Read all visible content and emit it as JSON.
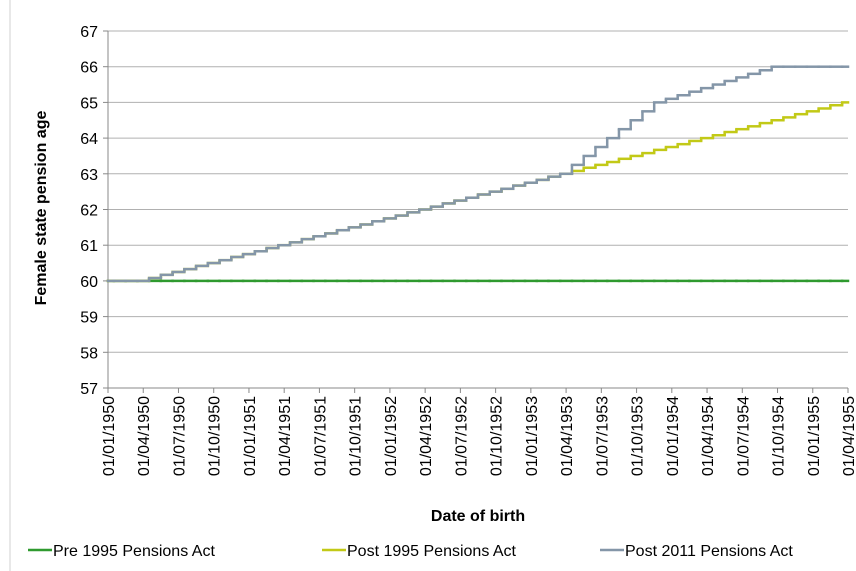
{
  "chart_data": {
    "type": "step-line",
    "xlabel": "Date of birth",
    "ylabel": "Female state pension age",
    "x": [
      "01/01/1950",
      "01/02/1950",
      "01/03/1950",
      "01/04/1950",
      "01/05/1950",
      "01/06/1950",
      "01/07/1950",
      "01/08/1950",
      "01/09/1950",
      "01/10/1950",
      "01/11/1950",
      "01/12/1950",
      "01/01/1951",
      "01/02/1951",
      "01/03/1951",
      "01/04/1951",
      "01/05/1951",
      "01/06/1951",
      "01/07/1951",
      "01/08/1951",
      "01/09/1951",
      "01/10/1951",
      "01/11/1951",
      "01/12/1951",
      "01/01/1952",
      "01/02/1952",
      "01/03/1952",
      "01/04/1952",
      "01/05/1952",
      "01/06/1952",
      "01/07/1952",
      "01/08/1952",
      "01/09/1952",
      "01/10/1952",
      "01/11/1952",
      "01/12/1952",
      "01/01/1953",
      "01/02/1953",
      "01/03/1953",
      "01/04/1953",
      "01/05/1953",
      "01/06/1953",
      "01/07/1953",
      "01/08/1953",
      "01/09/1953",
      "01/10/1953",
      "01/11/1953",
      "01/12/1953",
      "01/01/1954",
      "01/02/1954",
      "01/03/1954",
      "01/04/1954",
      "01/05/1954",
      "01/06/1954",
      "01/07/1954",
      "01/08/1954",
      "01/09/1954",
      "01/10/1954",
      "01/11/1954",
      "01/12/1954",
      "01/01/1955",
      "01/02/1955",
      "01/03/1955",
      "01/04/1955"
    ],
    "xtick_every": 3,
    "series": [
      {
        "name": "Pre 1995 Pensions Act",
        "color": "#2f9a2f",
        "values": [
          60,
          60,
          60,
          60,
          60,
          60,
          60,
          60,
          60,
          60,
          60,
          60,
          60,
          60,
          60,
          60,
          60,
          60,
          60,
          60,
          60,
          60,
          60,
          60,
          60,
          60,
          60,
          60,
          60,
          60,
          60,
          60,
          60,
          60,
          60,
          60,
          60,
          60,
          60,
          60,
          60,
          60,
          60,
          60,
          60,
          60,
          60,
          60,
          60,
          60,
          60,
          60,
          60,
          60,
          60,
          60,
          60,
          60,
          60,
          60,
          60,
          60,
          60,
          60
        ]
      },
      {
        "name": "Post 1995 Pensions Act",
        "color": "#c2c917",
        "values": [
          60,
          60,
          60,
          60,
          60.08,
          60.17,
          60.25,
          60.33,
          60.42,
          60.5,
          60.58,
          60.67,
          60.75,
          60.83,
          60.92,
          61,
          61.08,
          61.17,
          61.25,
          61.33,
          61.42,
          61.5,
          61.58,
          61.67,
          61.75,
          61.83,
          61.92,
          62,
          62.08,
          62.17,
          62.25,
          62.33,
          62.42,
          62.5,
          62.58,
          62.67,
          62.75,
          62.83,
          62.92,
          63,
          63.08,
          63.17,
          63.25,
          63.33,
          63.42,
          63.5,
          63.58,
          63.67,
          63.75,
          63.83,
          63.92,
          64,
          64.08,
          64.17,
          64.25,
          64.33,
          64.42,
          64.5,
          64.58,
          64.67,
          64.75,
          64.83,
          64.92,
          65
        ]
      },
      {
        "name": "Post 2011 Pensions Act",
        "color": "#8496a8",
        "values": [
          60,
          60,
          60,
          60,
          60.08,
          60.17,
          60.25,
          60.33,
          60.42,
          60.5,
          60.58,
          60.67,
          60.75,
          60.83,
          60.92,
          61,
          61.08,
          61.17,
          61.25,
          61.33,
          61.42,
          61.5,
          61.58,
          61.67,
          61.75,
          61.83,
          61.92,
          62,
          62.08,
          62.17,
          62.25,
          62.33,
          62.42,
          62.5,
          62.58,
          62.67,
          62.75,
          62.83,
          62.92,
          63,
          63.25,
          63.5,
          63.75,
          64,
          64.25,
          64.5,
          64.75,
          65,
          65.1,
          65.2,
          65.3,
          65.4,
          65.5,
          65.6,
          65.7,
          65.8,
          65.9,
          66,
          66,
          66,
          66,
          66,
          66,
          66
        ]
      }
    ],
    "ylim": [
      57,
      67
    ],
    "yticks": [
      57,
      58,
      59,
      60,
      61,
      62,
      63,
      64,
      65,
      66,
      67
    ],
    "grid": true,
    "legend": "bottom"
  }
}
